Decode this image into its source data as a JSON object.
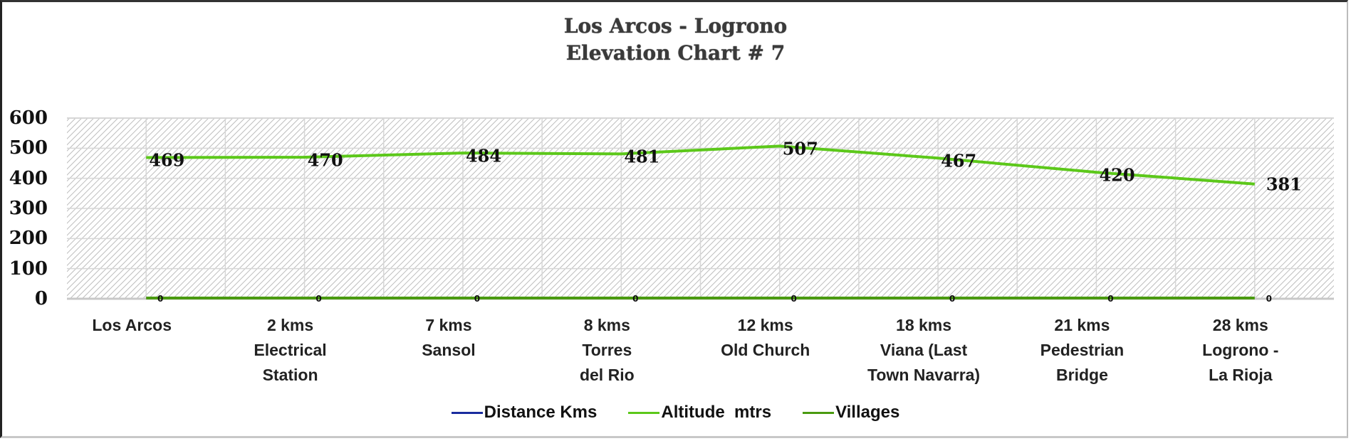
{
  "chart_data": {
    "type": "line",
    "title": "Los Arcos - Logrono",
    "subtitle": "Elevation Chart # 7",
    "xlabel": "",
    "ylabel": "",
    "ylim": [
      0,
      600
    ],
    "yticks": [
      "0",
      "100",
      "200",
      "300",
      "400",
      "500",
      "600"
    ],
    "grid": true,
    "legend_position": "bottom",
    "categories": [
      "Los Arcos",
      "2 kms\nElectrical\nStation",
      "7 kms\nSansol",
      "8 kms\nTorres\ndel  Rio",
      "12 kms\nOld Church",
      "18 kms\nViana    (Last\nTown Navarra)",
      "21 kms\nPedestrian\nBridge",
      "28 kms\nLogrono  -\nLa Rioja"
    ],
    "series": [
      {
        "name": "Distance Kms",
        "color": "#1a2c9e",
        "values": []
      },
      {
        "name": "Altitude  mtrs",
        "color": "#5cc81a",
        "values": [
          469,
          470,
          484,
          481,
          507,
          467,
          420,
          381
        ]
      },
      {
        "name": "Villages",
        "color": "#4a9a10",
        "values": [
          0,
          0,
          0,
          0,
          0,
          0,
          0,
          0
        ]
      }
    ]
  },
  "labels": {
    "altitude": [
      "469",
      "470",
      "484",
      "481",
      "507",
      "467",
      "420",
      "381"
    ],
    "villages": [
      "0",
      "0",
      "0",
      "0",
      "0",
      "0",
      "0",
      "0"
    ]
  }
}
